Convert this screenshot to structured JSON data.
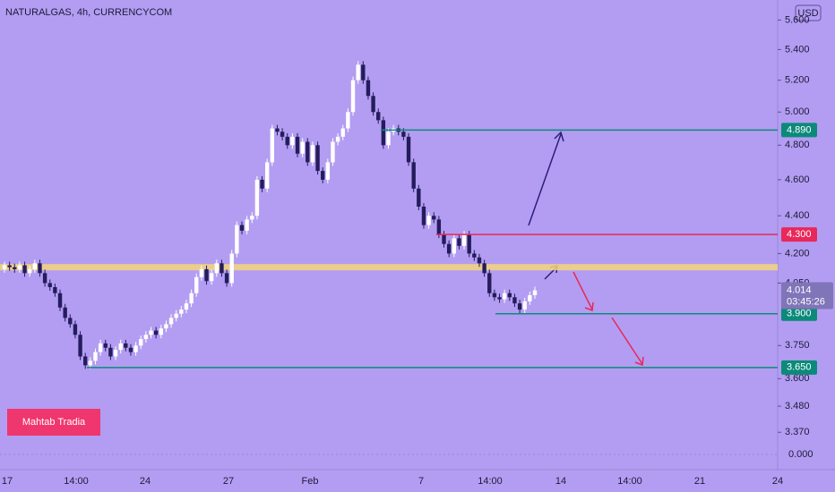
{
  "chart_data": {
    "type": "candlestick",
    "title": "NATURALGAS, 4h, CURRENCYCOM",
    "currency": "USD",
    "log_scale": true,
    "ylim": [
      3.345,
      5.74
    ],
    "yticks": [
      {
        "value": 5.6,
        "label": "5.600"
      },
      {
        "value": 5.4,
        "label": "5.400"
      },
      {
        "value": 5.2,
        "label": "5.200"
      },
      {
        "value": 5.0,
        "label": "5.000"
      },
      {
        "value": 4.8,
        "label": "4.800"
      },
      {
        "value": 4.6,
        "label": "4.600"
      },
      {
        "value": 4.4,
        "label": "4.400"
      },
      {
        "value": 4.2,
        "label": "4.200"
      },
      {
        "value": 4.05,
        "label": "4.050"
      },
      {
        "value": 3.75,
        "label": "3.750"
      },
      {
        "value": 3.6,
        "label": "3.600"
      },
      {
        "value": 3.48,
        "label": "3.480"
      },
      {
        "value": 3.37,
        "label": "3.370"
      }
    ],
    "time_labels": [
      "17",
      "14:00",
      "24",
      "27",
      "Feb",
      "7",
      "14:00",
      "14",
      "14:00",
      "21",
      "24"
    ],
    "open": 4.12,
    "close": [
      4.14,
      4.13,
      4.12,
      4.14,
      4.1,
      4.12,
      4.15,
      4.1,
      4.05,
      4.03,
      4.0,
      3.93,
      3.88,
      3.85,
      3.8,
      3.7,
      3.66,
      3.68,
      3.72,
      3.76,
      3.74,
      3.7,
      3.73,
      3.76,
      3.74,
      3.72,
      3.75,
      3.78,
      3.8,
      3.82,
      3.8,
      3.83,
      3.85,
      3.88,
      3.9,
      3.92,
      3.95,
      4.0,
      4.08,
      4.12,
      4.06,
      4.1,
      4.15,
      4.1,
      4.05,
      4.2,
      4.35,
      4.32,
      4.38,
      4.4,
      4.6,
      4.55,
      4.7,
      4.9,
      4.88,
      4.85,
      4.8,
      4.85,
      4.75,
      4.82,
      4.7,
      4.8,
      4.65,
      4.6,
      4.7,
      4.82,
      4.85,
      4.9,
      5.0,
      5.2,
      5.3,
      5.2,
      5.1,
      5.0,
      4.95,
      4.8,
      4.88,
      4.9,
      4.88,
      4.85,
      4.7,
      4.55,
      4.45,
      4.35,
      4.4,
      4.38,
      4.3,
      4.25,
      4.2,
      4.28,
      4.24,
      4.3,
      4.2,
      4.18,
      4.15,
      4.1,
      4.0,
      3.98,
      3.97,
      4.0,
      3.98,
      3.95,
      3.92,
      3.96,
      3.99,
      4.014
    ],
    "zone": 4.13,
    "levels": [
      {
        "value": 4.89,
        "label": "4.890",
        "color": "#0b8a7a"
      },
      {
        "value": 4.3,
        "label": "4.300",
        "color": "#e8285a"
      },
      {
        "value": 3.9,
        "label": "3.900",
        "color": "#0b8a7a"
      },
      {
        "value": 3.65,
        "label": "3.650",
        "color": "#0b8a7a"
      }
    ],
    "current_price": {
      "value": 4.014,
      "label": "4.014"
    },
    "countdown": "03:45:26",
    "indicator_tick": {
      "value": 0,
      "label": "0.000"
    },
    "watermark": "Mahtab Tradia"
  }
}
